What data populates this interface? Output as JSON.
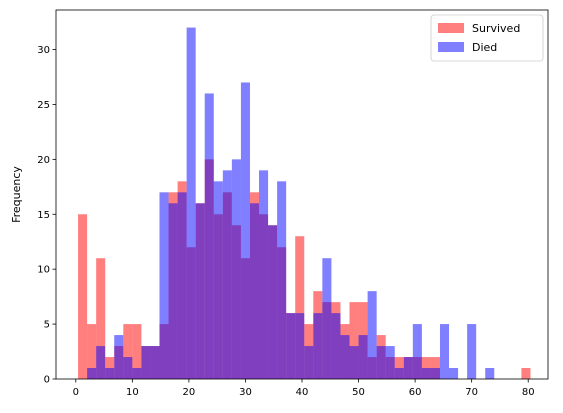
{
  "chart_data": {
    "type": "bar",
    "title": "",
    "xlabel": "",
    "ylabel": "Frequency",
    "xlim": [
      -3.5,
      83.5
    ],
    "ylim": [
      0,
      33.6
    ],
    "xticks": [
      0,
      10,
      20,
      30,
      40,
      50,
      60,
      70,
      80
    ],
    "yticks": [
      0,
      5,
      10,
      15,
      20,
      25,
      30
    ],
    "grid": false,
    "legend_position": "top-right",
    "bin_width": 1.6,
    "series": [
      {
        "name": "Survived",
        "color": "#ff0000",
        "opacity": 0.5,
        "bins": [
          [
            0.4,
            15
          ],
          [
            2.0,
            5
          ],
          [
            3.6,
            11
          ],
          [
            5.2,
            2
          ],
          [
            6.8,
            3
          ],
          [
            8.4,
            5
          ],
          [
            10.0,
            5
          ],
          [
            11.6,
            3
          ],
          [
            13.2,
            3
          ],
          [
            14.8,
            5
          ],
          [
            16.4,
            17
          ],
          [
            18.0,
            18
          ],
          [
            19.6,
            12
          ],
          [
            21.2,
            16
          ],
          [
            22.8,
            20
          ],
          [
            24.4,
            15
          ],
          [
            26.0,
            17
          ],
          [
            27.6,
            14
          ],
          [
            29.2,
            11
          ],
          [
            30.8,
            17
          ],
          [
            32.4,
            15
          ],
          [
            34.0,
            14
          ],
          [
            35.6,
            12
          ],
          [
            37.2,
            6
          ],
          [
            38.8,
            13
          ],
          [
            40.4,
            5
          ],
          [
            42.0,
            8
          ],
          [
            43.6,
            7
          ],
          [
            45.2,
            7
          ],
          [
            46.8,
            5
          ],
          [
            48.4,
            7
          ],
          [
            50.0,
            7
          ],
          [
            51.6,
            2
          ],
          [
            53.2,
            4
          ],
          [
            54.8,
            2
          ],
          [
            56.4,
            2
          ],
          [
            58.0,
            2
          ],
          [
            59.6,
            2
          ],
          [
            61.2,
            2
          ],
          [
            62.8,
            2
          ],
          [
            78.8,
            1
          ]
        ]
      },
      {
        "name": "Died",
        "color": "#0000ff",
        "opacity": 0.5,
        "bins": [
          [
            0.4,
            0
          ],
          [
            2.0,
            1
          ],
          [
            3.6,
            3
          ],
          [
            5.2,
            1
          ],
          [
            6.8,
            4
          ],
          [
            8.4,
            2
          ],
          [
            10.0,
            1
          ],
          [
            11.6,
            3
          ],
          [
            13.2,
            3
          ],
          [
            14.8,
            17
          ],
          [
            16.4,
            16
          ],
          [
            18.0,
            17
          ],
          [
            19.6,
            32
          ],
          [
            21.2,
            16
          ],
          [
            22.8,
            26
          ],
          [
            24.4,
            18
          ],
          [
            26.0,
            19
          ],
          [
            27.6,
            20
          ],
          [
            29.2,
            27
          ],
          [
            30.8,
            16
          ],
          [
            32.4,
            19
          ],
          [
            34.0,
            14
          ],
          [
            35.6,
            18
          ],
          [
            37.2,
            6
          ],
          [
            38.8,
            6
          ],
          [
            40.4,
            3
          ],
          [
            42.0,
            6
          ],
          [
            43.6,
            11
          ],
          [
            45.2,
            6
          ],
          [
            46.8,
            4
          ],
          [
            48.4,
            3
          ],
          [
            50.0,
            4
          ],
          [
            51.6,
            8
          ],
          [
            53.2,
            3
          ],
          [
            54.8,
            3
          ],
          [
            56.4,
            1
          ],
          [
            58.0,
            2
          ],
          [
            59.6,
            5
          ],
          [
            61.2,
            1
          ],
          [
            62.8,
            1
          ],
          [
            64.4,
            5
          ],
          [
            66.0,
            1
          ],
          [
            67.6,
            0
          ],
          [
            69.2,
            5
          ],
          [
            70.8,
            0
          ],
          [
            72.4,
            1
          ]
        ]
      }
    ]
  }
}
